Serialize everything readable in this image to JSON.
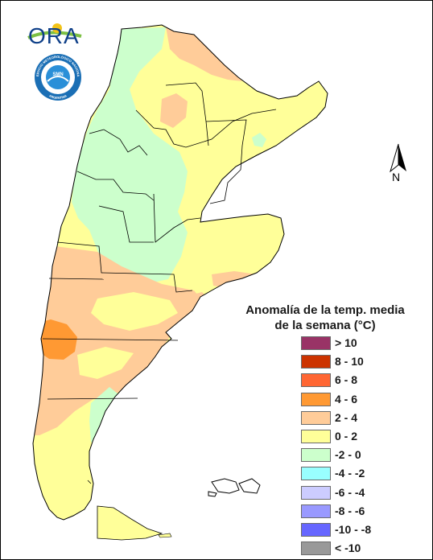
{
  "logo": {
    "text": "ORA",
    "colors": {
      "text": "#0e3f88",
      "swoosh": "#7cc043",
      "sun": "#f2c318"
    }
  },
  "badge": {
    "top_text": "SERVICIO METEOROLÓGICO NACIONAL",
    "bottom_text": "ARGENTINA",
    "center_text": "SMN",
    "colors": {
      "ring": "#1b6fb5",
      "inner": "#ffffff",
      "center": "#2a8fd8"
    }
  },
  "north_arrow": {
    "label": "N"
  },
  "legend": {
    "title_line1": "Anomalía de la temp. media",
    "title_line2": "de la semana (°C)",
    "items": [
      {
        "label": "> 10",
        "color": "#993366"
      },
      {
        "label": "8 - 10",
        "color": "#cc3300"
      },
      {
        "label": "6 - 8",
        "color": "#ff6633"
      },
      {
        "label": "4 - 6",
        "color": "#ff9933"
      },
      {
        "label": "2 - 4",
        "color": "#ffcc99"
      },
      {
        "label": "0 - 2",
        "color": "#ffff99"
      },
      {
        "label": "-2 - 0",
        "color": "#ccffcc"
      },
      {
        "label": "-4 - -2",
        "color": "#99ffff"
      },
      {
        "label": "-6 - -4",
        "color": "#ccccff"
      },
      {
        "label": "-8 - -6",
        "color": "#9999ff"
      },
      {
        "label": "-10 - -8",
        "color": "#6666ff"
      },
      {
        "label": "< -10",
        "color": "#999999"
      }
    ]
  },
  "map_colors": {
    "0_2": "#ffff99",
    "2_4": "#ffcc99",
    "4_6": "#ff9933",
    "m2_0": "#ccffcc",
    "border": "#000000"
  }
}
